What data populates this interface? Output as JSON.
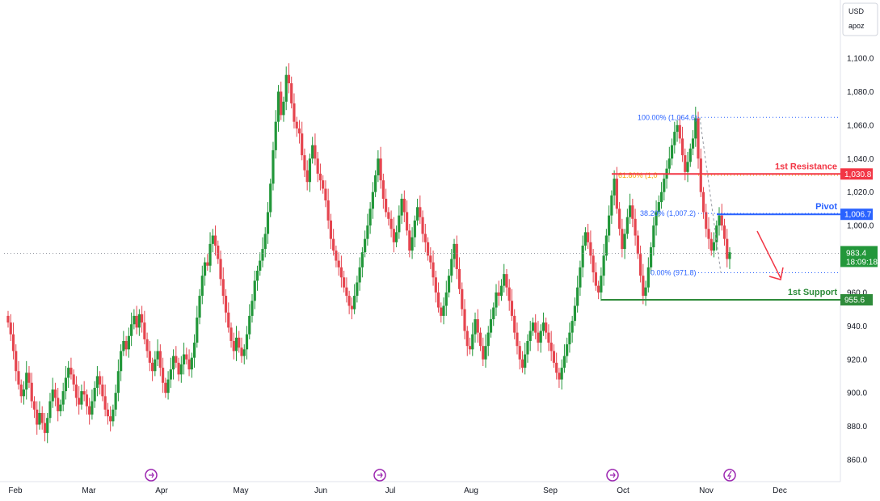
{
  "colors": {
    "up": "#22973a",
    "down": "#e5454f",
    "resistance": "#f23645",
    "pivot": "#2962ff",
    "support": "#2e8b3a",
    "fib": "#2962ff",
    "arrow": "#f23645"
  },
  "header": {
    "currency": "USD",
    "scale_mode": "apoz"
  },
  "chart_data": {
    "type": "candlestick",
    "x_labels": [
      "Feb",
      "Mar",
      "Apr",
      "May",
      "Jun",
      "Jul",
      "Aug",
      "Sep",
      "Oct",
      "Nov",
      "Dec"
    ],
    "x_months_index": [
      0,
      1,
      2,
      3,
      4,
      5,
      6,
      7,
      8,
      9,
      10
    ],
    "y_ticks": [
      "1,100.0",
      "1,080.0",
      "1,060.0",
      "1,040.0",
      "1,020.0",
      "1,000.0",
      "960.0",
      "940.0",
      "920.0",
      "900.0",
      "880.0",
      "860.0"
    ],
    "y_tick_values": [
      1100,
      1080,
      1060,
      1040,
      1020,
      1000,
      960,
      940,
      920,
      900,
      880,
      860
    ],
    "ylim": [
      850,
      1110
    ],
    "current_price": {
      "value": "983.4",
      "countdown": "18:09:18"
    },
    "levels": [
      {
        "name": "1st Resistance",
        "value": 1030.8,
        "tag": "1,030.8"
      },
      {
        "name": "Pivot",
        "value": 1006.7,
        "tag": "1,006.7"
      },
      {
        "name": "1st Support",
        "value": 955.6,
        "tag": "955.6"
      }
    ],
    "fib_labels": [
      {
        "text": "100.00% (1,064.6)",
        "value": 1064.6
      },
      {
        "text": "61.80% (1,0",
        "value": 1030
      },
      {
        "text": "38.20% (1,007.2)",
        "value": 1007.2
      },
      {
        "text": "0.00% (971.8)",
        "value": 971.8
      }
    ],
    "closes": [
      942,
      935,
      925,
      913,
      905,
      898,
      902,
      912,
      906,
      895,
      890,
      881,
      888,
      882,
      876,
      885,
      895,
      902,
      897,
      889,
      893,
      901,
      909,
      915,
      911,
      905,
      897,
      893,
      901,
      899,
      892,
      887,
      895,
      903,
      910,
      905,
      898,
      890,
      886,
      883,
      890,
      900,
      913,
      925,
      931,
      926,
      934,
      941,
      946,
      939,
      947,
      942,
      932,
      925,
      918,
      913,
      920,
      925,
      915,
      906,
      900,
      908,
      914,
      922,
      918,
      911,
      917,
      923,
      920,
      914,
      921,
      930,
      945,
      958,
      970,
      978,
      976,
      989,
      994,
      988,
      980,
      968,
      958,
      948,
      939,
      931,
      925,
      933,
      927,
      922,
      926,
      935,
      946,
      955,
      967,
      973,
      979,
      986,
      995,
      1008,
      1025,
      1045,
      1062,
      1080,
      1066,
      1074,
      1090,
      1085,
      1073,
      1062,
      1058,
      1055,
      1042,
      1033,
      1026,
      1040,
      1048,
      1040,
      1031,
      1027,
      1022,
      1015,
      1003,
      992,
      985,
      979,
      975,
      969,
      963,
      958,
      952,
      950,
      958,
      966,
      975,
      984,
      992,
      1000,
      1010,
      1020,
      1030,
      1040,
      1027,
      1016,
      1008,
      1004,
      998,
      990,
      996,
      1006,
      1016,
      1008,
      997,
      985,
      993,
      1003,
      1011,
      1005,
      995,
      990,
      982,
      978,
      969,
      960,
      951,
      946,
      952,
      960,
      970,
      980,
      989,
      974,
      962,
      950,
      937,
      928,
      926,
      935,
      944,
      936,
      928,
      920,
      928,
      936,
      944,
      951,
      960,
      958,
      964,
      971,
      963,
      955,
      946,
      936,
      928,
      920,
      915,
      923,
      931,
      937,
      942,
      936,
      930,
      937,
      942,
      936,
      930,
      925,
      918,
      912,
      908,
      915,
      922,
      929,
      936,
      943,
      952,
      963,
      975,
      988,
      996,
      990,
      982,
      972,
      964,
      960,
      970,
      982,
      994,
      1006,
      1018,
      1028,
      1010,
      998,
      986,
      995,
      1005,
      1012,
      1004,
      994,
      983,
      970,
      958,
      963,
      975,
      987,
      1000,
      1008,
      1014,
      1020,
      1028,
      1034,
      1040,
      1048,
      1056,
      1060,
      1052,
      1042,
      1032,
      1038,
      1046,
      1052,
      1064,
      1040,
      1020,
      1008,
      998,
      992,
      985,
      990,
      1000,
      1006,
      1000,
      992,
      980,
      984
    ]
  }
}
